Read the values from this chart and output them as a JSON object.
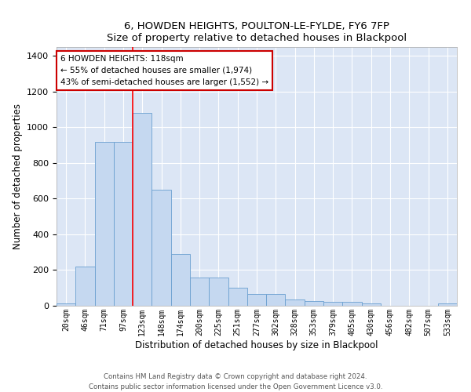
{
  "title": "6, HOWDEN HEIGHTS, POULTON-LE-FYLDE, FY6 7FP",
  "subtitle": "Size of property relative to detached houses in Blackpool",
  "xlabel": "Distribution of detached houses by size in Blackpool",
  "ylabel": "Number of detached properties",
  "categories": [
    "20sqm",
    "46sqm",
    "71sqm",
    "97sqm",
    "123sqm",
    "148sqm",
    "174sqm",
    "200sqm",
    "225sqm",
    "251sqm",
    "277sqm",
    "302sqm",
    "328sqm",
    "353sqm",
    "379sqm",
    "405sqm",
    "430sqm",
    "456sqm",
    "482sqm",
    "507sqm",
    "533sqm"
  ],
  "values": [
    15,
    220,
    920,
    920,
    1080,
    650,
    290,
    160,
    160,
    100,
    65,
    65,
    35,
    25,
    20,
    20,
    15,
    0,
    0,
    0,
    15
  ],
  "bar_color": "#c5d8f0",
  "bar_edge_color": "#6a9fd0",
  "background_color": "#dce6f5",
  "grid_color": "#ffffff",
  "red_line_index": 4,
  "annotation_line1": "6 HOWDEN HEIGHTS: 118sqm",
  "annotation_line2": "← 55% of detached houses are smaller (1,974)",
  "annotation_line3": "43% of semi-detached houses are larger (1,552) →",
  "annotation_box_color": "#ffffff",
  "annotation_box_edge": "#cc0000",
  "ylim": [
    0,
    1450
  ],
  "yticks": [
    0,
    200,
    400,
    600,
    800,
    1000,
    1200,
    1400
  ],
  "footer1": "Contains HM Land Registry data © Crown copyright and database right 2024.",
  "footer2": "Contains public sector information licensed under the Open Government Licence v3.0."
}
